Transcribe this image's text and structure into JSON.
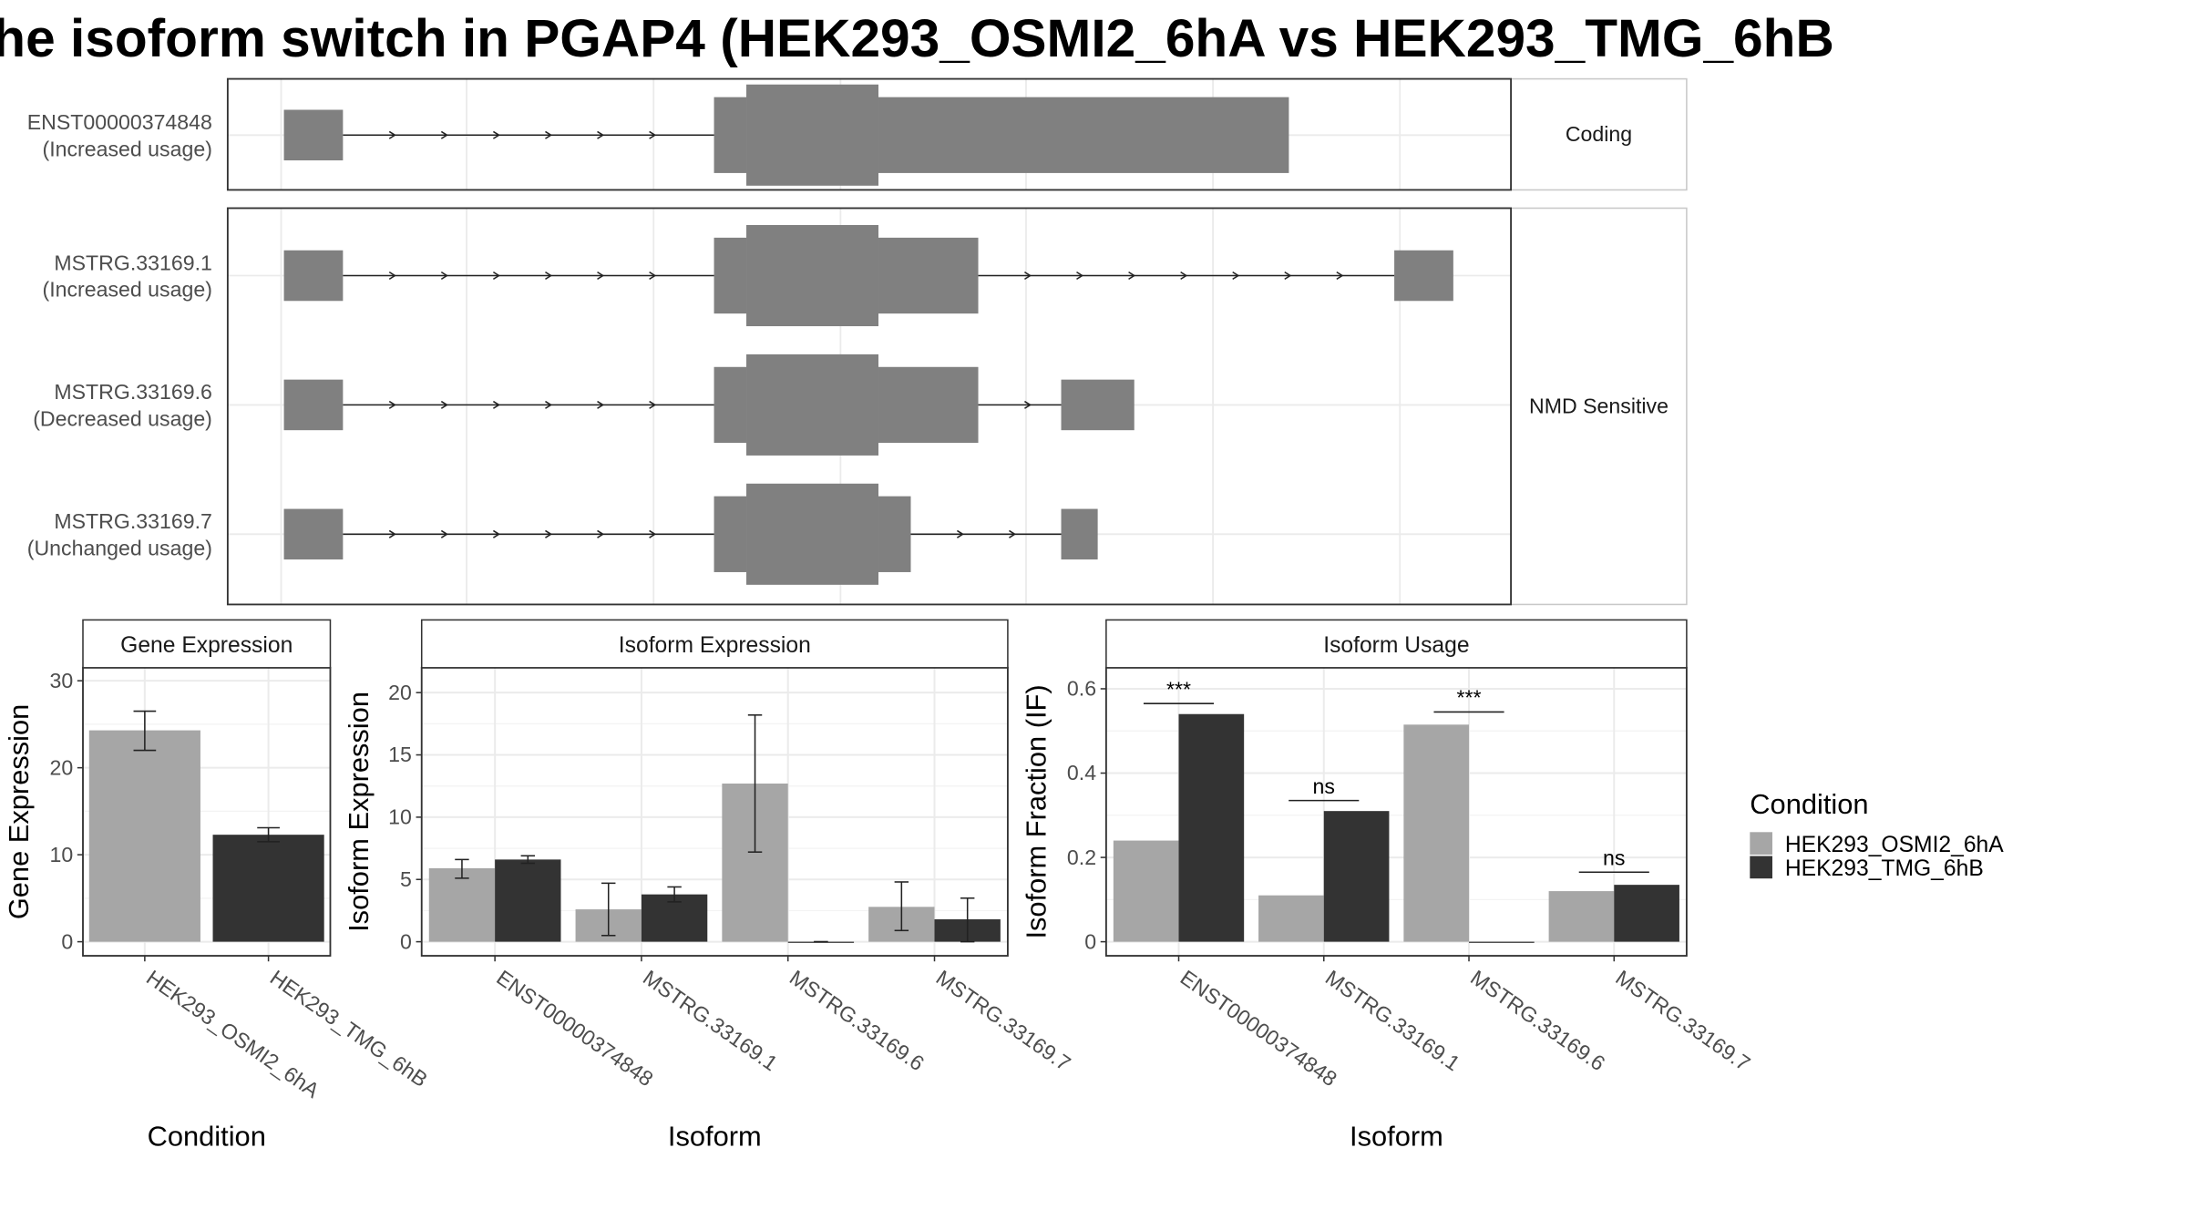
{
  "title": "he isoform switch in PGAP4 (HEK293_OSMI2_6hA vs HEK293_TMG_6hB",
  "colors": {
    "osmi2": "#a6a6a6",
    "tmg": "#333333",
    "exon": "#808080",
    "grid": "#ebebeb",
    "strip_bg": "#ffffff",
    "panel_border": "#333333"
  },
  "legend": {
    "title": "Condition",
    "items": [
      {
        "label": "HEK293_OSMI2_6hA",
        "color": "#a6a6a6"
      },
      {
        "label": "HEK293_TMG_6hB",
        "color": "#333333"
      }
    ]
  },
  "structure": {
    "groups": [
      {
        "strip": "Coding",
        "rows": [
          {
            "line1": "ENST00000374848",
            "line2": "(Increased usage)",
            "exons": [
              [
                202,
                244,
                "s"
              ],
              [
                508,
                531,
                "m"
              ],
              [
                531,
                625,
                "l"
              ],
              [
                625,
                917,
                "m"
              ]
            ],
            "introns": [
              [
                244,
                508
              ]
            ]
          }
        ]
      },
      {
        "strip": "NMD Sensitive",
        "rows": [
          {
            "line1": "MSTRG.33169.1",
            "line2": "(Increased usage)",
            "exons": [
              [
                202,
                244,
                "s"
              ],
              [
                508,
                531,
                "m"
              ],
              [
                531,
                625,
                "l"
              ],
              [
                625,
                696,
                "m"
              ],
              [
                992,
                1034,
                "s"
              ]
            ],
            "introns": [
              [
                244,
                508
              ],
              [
                696,
                992
              ]
            ]
          },
          {
            "line1": "MSTRG.33169.6",
            "line2": "(Decreased usage)",
            "exons": [
              [
                202,
                244,
                "s"
              ],
              [
                508,
                531,
                "m"
              ],
              [
                531,
                625,
                "l"
              ],
              [
                625,
                696,
                "m"
              ],
              [
                755,
                807,
                "s"
              ]
            ],
            "introns": [
              [
                244,
                508
              ],
              [
                696,
                755
              ]
            ]
          },
          {
            "line1": "MSTRG.33169.7",
            "line2": "(Unchanged usage)",
            "exons": [
              [
                202,
                244,
                "s"
              ],
              [
                508,
                531,
                "m"
              ],
              [
                531,
                625,
                "l"
              ],
              [
                625,
                648,
                "m"
              ],
              [
                755,
                781,
                "s"
              ]
            ],
            "introns": [
              [
                244,
                508
              ],
              [
                648,
                755
              ]
            ]
          }
        ]
      }
    ]
  },
  "chart_data": [
    {
      "type": "bar",
      "title": "Gene Expression",
      "xlabel": "Condition",
      "ylabel": "Gene Expression",
      "ylim": [
        0,
        31.5
      ],
      "yticks": [
        0,
        10,
        20,
        30
      ],
      "categories": [
        "HEK293_OSMI2_6hA",
        "HEK293_TMG_6hB"
      ],
      "values": [
        24.3,
        12.3
      ],
      "errors": [
        [
          22.0,
          26.5
        ],
        [
          11.5,
          13.1
        ]
      ]
    },
    {
      "type": "bar",
      "title": "Isoform Expression",
      "xlabel": "Isoform",
      "ylabel": "Isoform Expression",
      "ylim": [
        0,
        22
      ],
      "yticks": [
        0,
        5,
        10,
        15,
        20
      ],
      "categories": [
        "ENST00000374848",
        "MSTRG.33169.1",
        "MSTRG.33169.6",
        "MSTRG.33169.7"
      ],
      "series": [
        {
          "name": "HEK293_OSMI2_6hA",
          "values": [
            5.9,
            2.6,
            12.7,
            2.8
          ],
          "errors": [
            [
              5.1,
              6.6
            ],
            [
              0.5,
              4.7
            ],
            [
              7.2,
              18.2
            ],
            [
              0.9,
              4.8
            ]
          ]
        },
        {
          "name": "HEK293_TMG_6hB",
          "values": [
            6.6,
            3.8,
            0.0,
            1.8
          ],
          "errors": [
            [
              6.3,
              6.9
            ],
            [
              3.2,
              4.4
            ],
            [
              0,
              0
            ],
            [
              0.0,
              3.5
            ]
          ]
        }
      ]
    },
    {
      "type": "bar",
      "title": "Isoform Usage",
      "xlabel": "Isoform",
      "ylabel": "Isoform Fraction (IF)",
      "ylim": [
        0,
        0.65
      ],
      "yticks": [
        0.0,
        0.2,
        0.4,
        0.6
      ],
      "categories": [
        "ENST00000374848",
        "MSTRG.33169.1",
        "MSTRG.33169.6",
        "MSTRG.33169.7"
      ],
      "series": [
        {
          "name": "HEK293_OSMI2_6hA",
          "values": [
            0.24,
            0.11,
            0.515,
            0.12
          ]
        },
        {
          "name": "HEK293_TMG_6hB",
          "values": [
            0.54,
            0.31,
            0.0,
            0.135
          ]
        }
      ],
      "significance": [
        {
          "label": "***",
          "y": 0.565
        },
        {
          "label": "ns",
          "y": 0.335
        },
        {
          "label": "***",
          "y": 0.545
        },
        {
          "label": "ns",
          "y": 0.165
        }
      ]
    }
  ]
}
